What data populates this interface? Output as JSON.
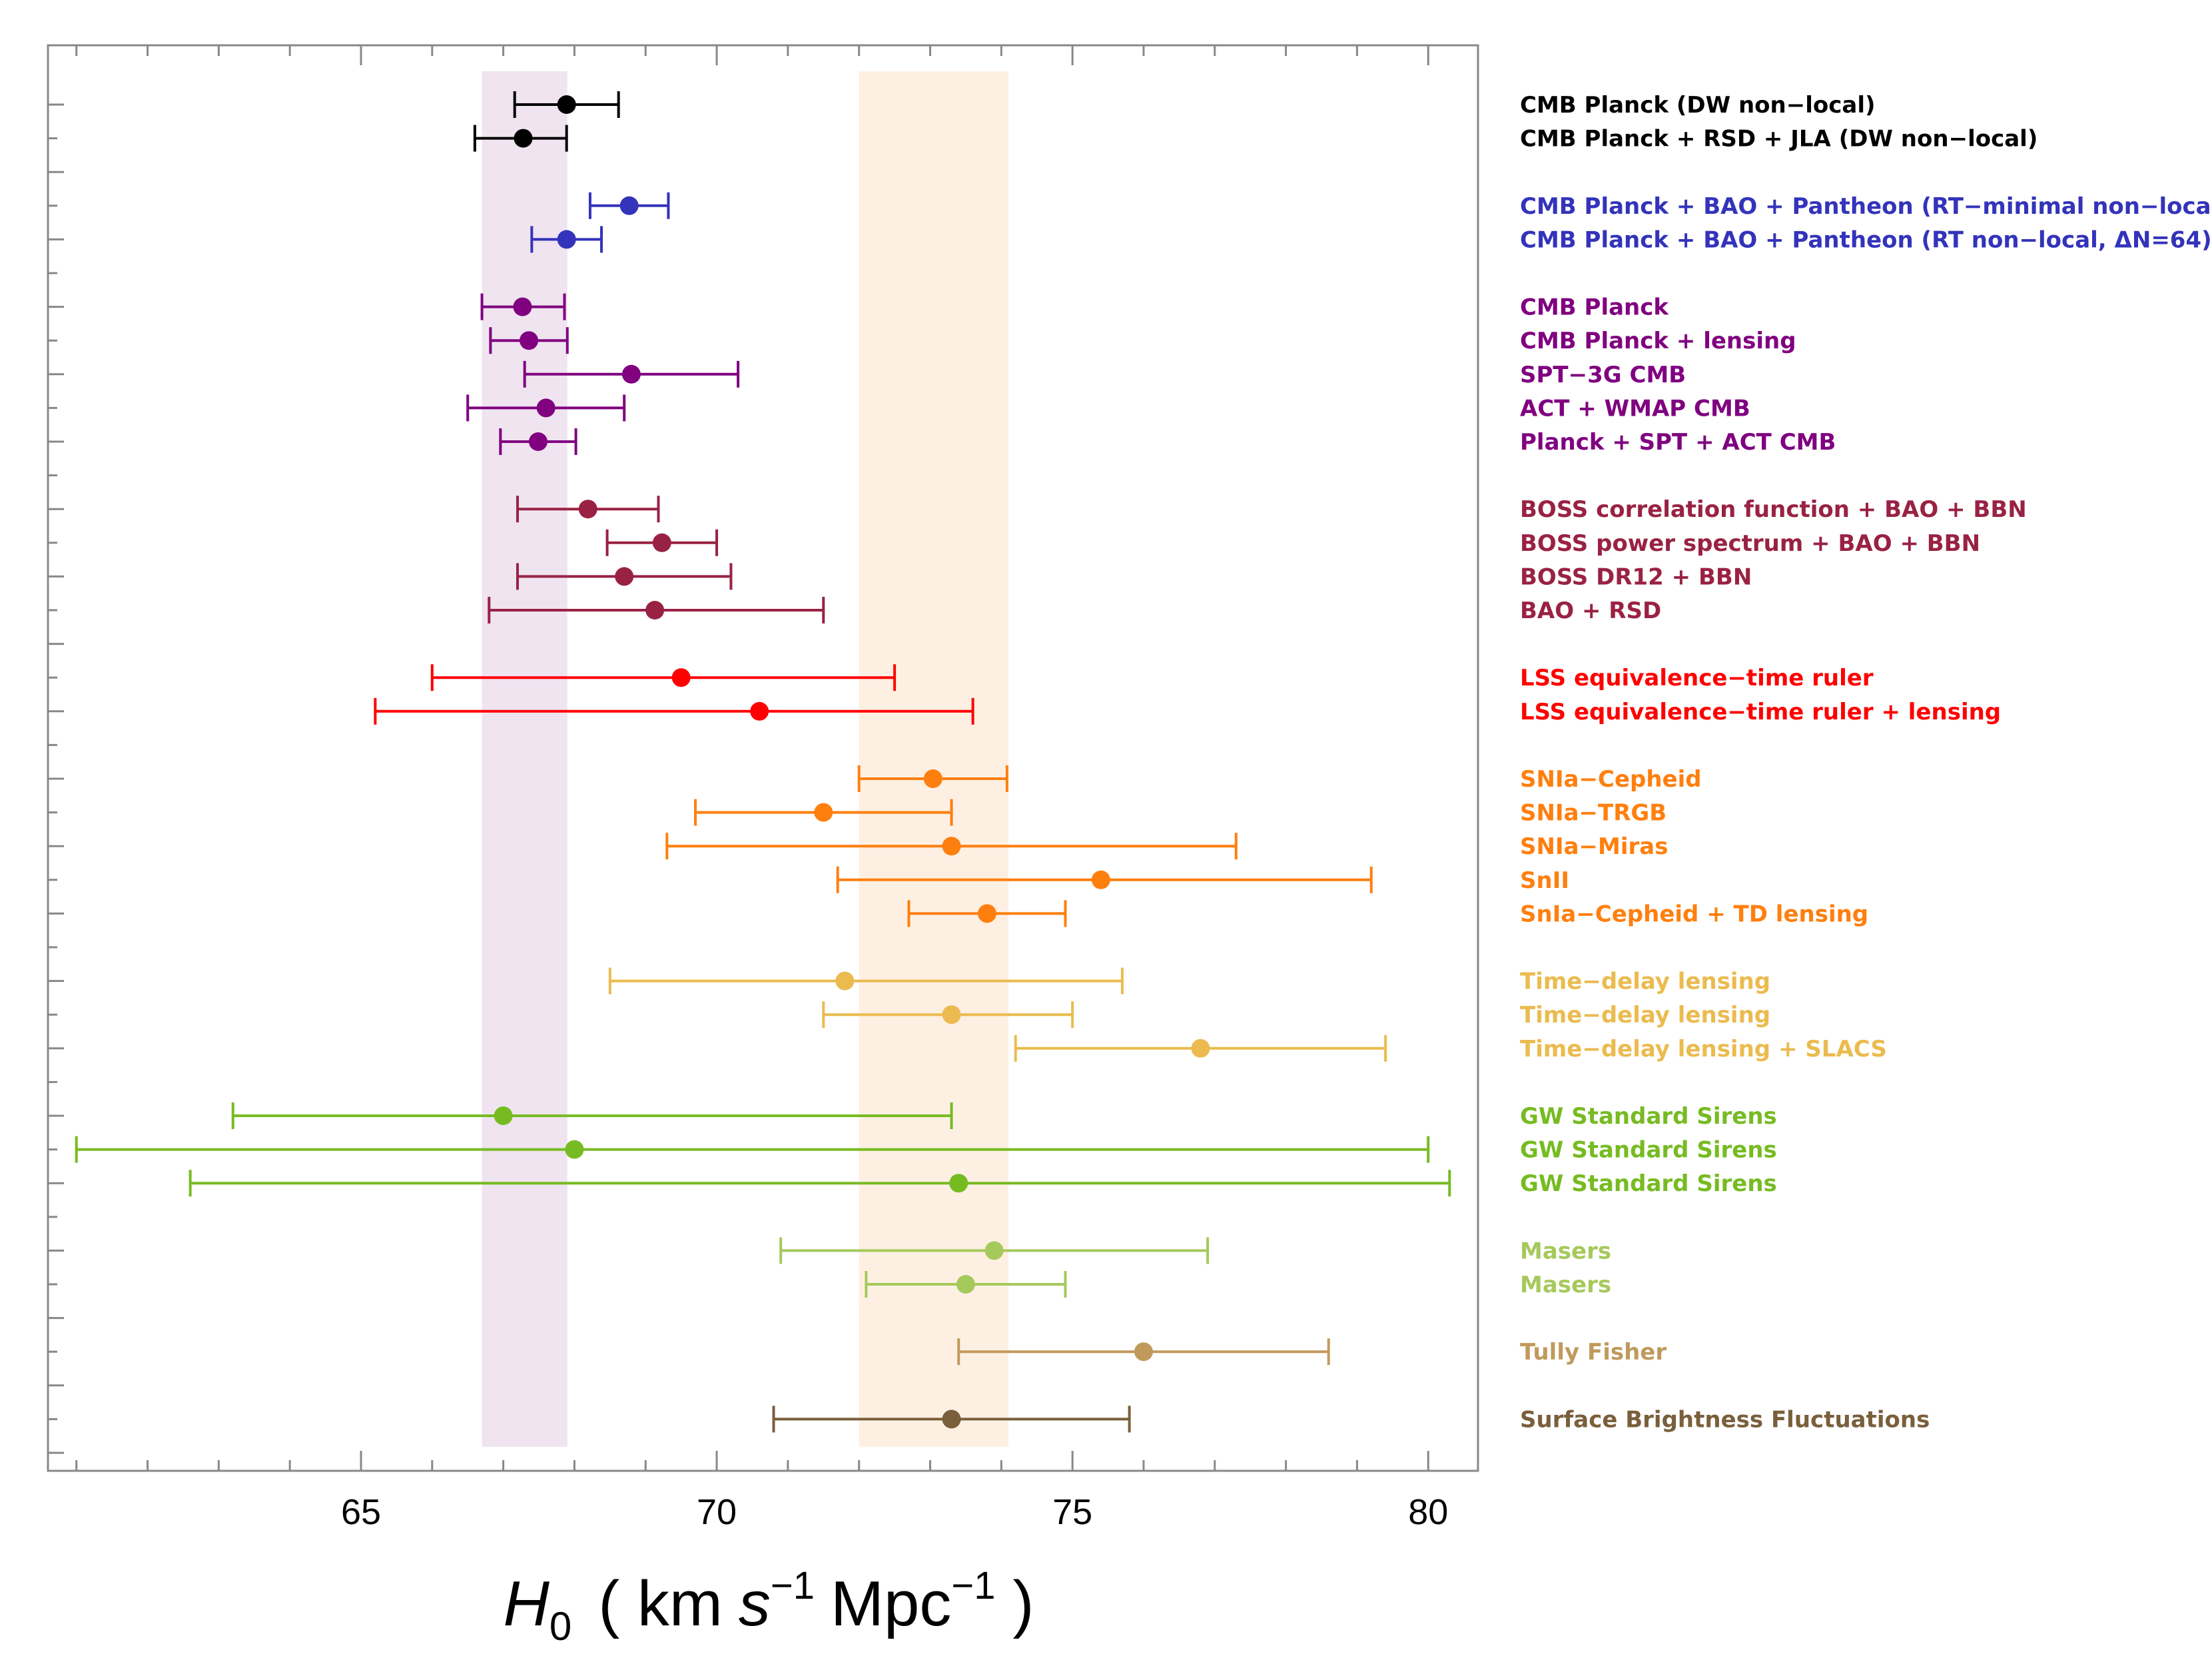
{
  "chart_data": {
    "type": "errorbar",
    "xlabel": {
      "symbol": "H",
      "subscript": "0",
      "open": "( km",
      "s": "s",
      "exp": "−1",
      "mpc": "Mpc",
      "close": ")"
    },
    "xlim": [
      60.6,
      80.7
    ],
    "xticks": [
      65,
      70,
      75,
      80
    ],
    "bands": [
      {
        "name": "planck-band",
        "xmin": 66.7,
        "xmax": 67.9,
        "color": "#efe4f0"
      },
      {
        "name": "shoes-band",
        "xmin": 72.0,
        "xmax": 74.1,
        "color": "#fdf0e3"
      }
    ],
    "rows": 21,
    "points": [
      {
        "label": "CMB Planck (DW non−local)",
        "value": 67.89,
        "low": 67.16,
        "high": 68.62,
        "row": 0,
        "color": "#000000"
      },
      {
        "label": "CMB Planck + RSD + JLA (DW non−local)",
        "value": 67.28,
        "low": 66.6,
        "high": 67.89,
        "row": 0.5,
        "color": "#000000"
      },
      {
        "label": "CMB Planck + BAO + Pantheon (RT−minimal non−local)",
        "value": 68.77,
        "low": 68.22,
        "high": 69.32,
        "row": 1.5,
        "color": "#3333bb"
      },
      {
        "label": "CMB Planck + BAO + Pantheon (RT non−local, ΔN=64)",
        "value": 67.89,
        "low": 67.4,
        "high": 68.38,
        "row": 2,
        "color": "#3333bb"
      },
      {
        "label": "CMB Planck",
        "value": 67.27,
        "low": 66.7,
        "high": 67.86,
        "row": 3,
        "color": "#800080"
      },
      {
        "label": "CMB Planck + lensing",
        "value": 67.36,
        "low": 66.82,
        "high": 67.9,
        "row": 3.5,
        "color": "#800080"
      },
      {
        "label": "SPT−3G CMB",
        "value": 68.8,
        "low": 67.3,
        "high": 70.3,
        "row": 4,
        "color": "#800080"
      },
      {
        "label": "ACT + WMAP CMB",
        "value": 67.6,
        "low": 66.5,
        "high": 68.7,
        "row": 4.5,
        "color": "#800080"
      },
      {
        "label": "Planck + SPT + ACT CMB",
        "value": 67.49,
        "low": 66.96,
        "high": 68.02,
        "row": 5,
        "color": "#800080"
      },
      {
        "label": "BOSS correlation function + BAO + BBN",
        "value": 68.19,
        "low": 67.2,
        "high": 69.18,
        "row": 6,
        "color": "#992244"
      },
      {
        "label": "BOSS power spectrum + BAO + BBN",
        "value": 69.23,
        "low": 68.46,
        "high": 70.0,
        "row": 6.5,
        "color": "#992244"
      },
      {
        "label": "BOSS DR12 + BBN",
        "value": 68.7,
        "low": 67.2,
        "high": 70.2,
        "row": 7,
        "color": "#992244"
      },
      {
        "label": "BAO + RSD",
        "value": 69.13,
        "low": 66.8,
        "high": 71.5,
        "row": 7.5,
        "color": "#992244"
      },
      {
        "label": "LSS equivalence−time ruler",
        "value": 69.5,
        "low": 66.0,
        "high": 72.5,
        "row": 8.5,
        "color": "#ff0000"
      },
      {
        "label": "LSS equivalence−time ruler + lensing",
        "value": 70.6,
        "low": 65.2,
        "high": 73.6,
        "row": 9,
        "color": "#ff0000"
      },
      {
        "label": "SNIa−Cepheid",
        "value": 73.04,
        "low": 72.0,
        "high": 74.08,
        "row": 10,
        "color": "#ff7f0e"
      },
      {
        "label": "SNIa−TRGB",
        "value": 71.5,
        "low": 69.7,
        "high": 73.3,
        "row": 10.5,
        "color": "#ff7f0e"
      },
      {
        "label": "SNIa−Miras",
        "value": 73.3,
        "low": 69.3,
        "high": 77.3,
        "row": 11,
        "color": "#ff7f0e"
      },
      {
        "label": "SnII",
        "value": 75.4,
        "low": 71.7,
        "high": 79.2,
        "row": 11.5,
        "color": "#ff7f0e"
      },
      {
        "label": "SnIa−Cepheid + TD lensing",
        "value": 73.8,
        "low": 72.7,
        "high": 74.9,
        "row": 12,
        "color": "#ff7f0e"
      },
      {
        "label": "Time−delay lensing",
        "value": 71.8,
        "low": 68.5,
        "high": 75.7,
        "row": 13,
        "color": "#ebbb4f"
      },
      {
        "label": "Time−delay lensing",
        "value": 73.3,
        "low": 71.5,
        "high": 75.0,
        "row": 13.5,
        "color": "#ebbb4f"
      },
      {
        "label": "Time−delay lensing + SLACS",
        "value": 76.8,
        "low": 74.2,
        "high": 79.4,
        "row": 14,
        "color": "#ebbb4f"
      },
      {
        "label": "GW Standard Sirens",
        "value": 67.0,
        "low": 63.2,
        "high": 73.3,
        "row": 15,
        "color": "#77bb22"
      },
      {
        "label": "GW Standard Sirens",
        "value": 68.0,
        "low": 61.0,
        "high": 80.0,
        "row": 15.5,
        "color": "#77bb22"
      },
      {
        "label": "GW Standard Sirens",
        "value": 73.4,
        "low": 62.6,
        "high": 80.3,
        "row": 16,
        "color": "#77bb22"
      },
      {
        "label": "Masers",
        "value": 73.9,
        "low": 70.9,
        "high": 76.9,
        "row": 17,
        "color": "#a6c95c"
      },
      {
        "label": "Masers",
        "value": 73.5,
        "low": 72.1,
        "high": 74.9,
        "row": 17.5,
        "color": "#a6c95c"
      },
      {
        "label": "Tully Fisher",
        "value": 76.0,
        "low": 73.4,
        "high": 78.6,
        "row": 18.5,
        "color": "#c09a5c"
      },
      {
        "label": "Surface Brightness Fluctuations",
        "value": 73.3,
        "low": 70.8,
        "high": 75.8,
        "row": 19.5,
        "color": "#7a5f3c"
      }
    ]
  }
}
